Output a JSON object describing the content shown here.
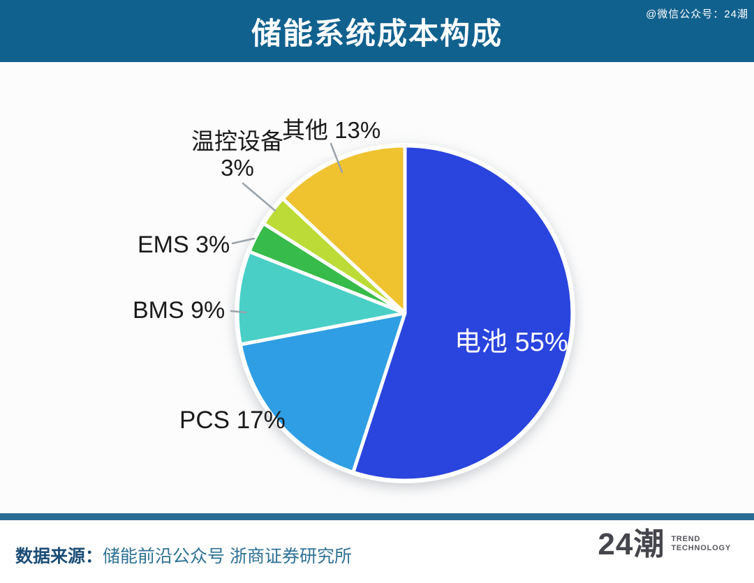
{
  "header": {
    "title": "储能系统成本构成",
    "watermark": "@微信公众号：24潮",
    "bg_color": "#11618E"
  },
  "chart_data": {
    "type": "pie",
    "title": "储能系统成本构成",
    "categories": [
      "电池",
      "PCS",
      "BMS",
      "EMS",
      "温控设备",
      "其他"
    ],
    "values": [
      55,
      17,
      9,
      3,
      3,
      13
    ],
    "unit": "%",
    "colors": [
      "#2A44DE",
      "#2F9EE4",
      "#49CFC6",
      "#37BB4A",
      "#BCDB36",
      "#EFC230"
    ],
    "slice_ids": [
      "battery",
      "pcs",
      "bms",
      "ems",
      "thermal",
      "other"
    ],
    "start_angle_deg": 0,
    "direction": "clockwise",
    "legend_position": "none",
    "labels": {
      "battery": "电池 55%",
      "pcs": "PCS 17%",
      "bms": "BMS 9%",
      "ems": "EMS 3%",
      "thermal_name": "温控设备",
      "thermal_value": "3%",
      "other": "其他 13%"
    }
  },
  "footer": {
    "source_label": "数据来源：",
    "source_text": "储能前沿公众号 浙商证券研究所",
    "divider_color": "#2A6D94",
    "logo_text": "24潮",
    "logo_subtitle_line1": "TREND",
    "logo_subtitle_line2": "TECHNOLOGY"
  }
}
